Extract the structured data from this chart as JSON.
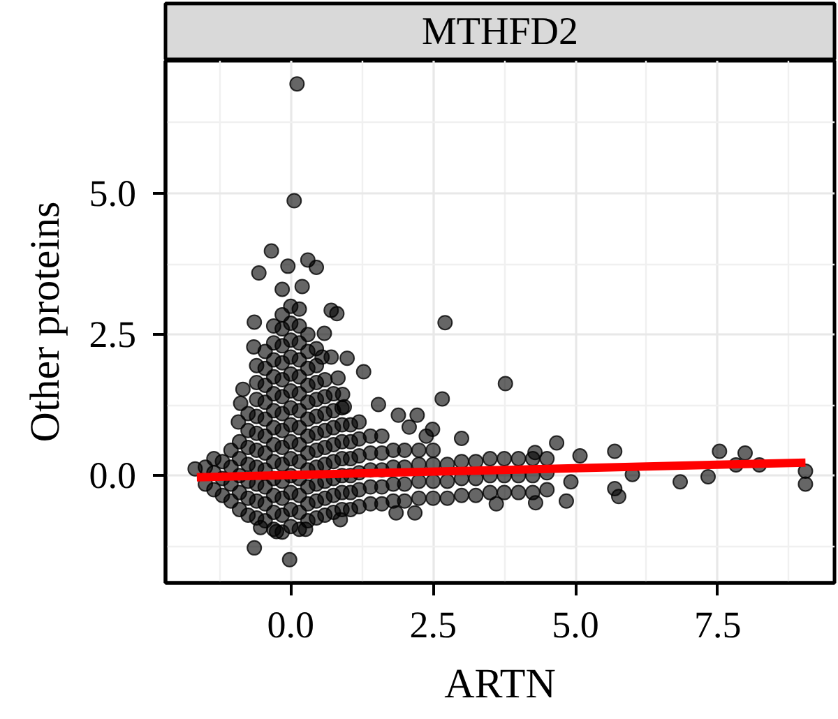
{
  "chart_data": {
    "type": "scatter",
    "title": "MTHFD2",
    "xlabel": "ARTN",
    "ylabel": "Other proteins",
    "xlim": [
      -2.2,
      9.55
    ],
    "ylim": [
      -1.9,
      7.35
    ],
    "xticks": [
      {
        "value": 0,
        "label": "0.0"
      },
      2.5,
      {
        "value": 5,
        "label": "5.0"
      },
      7.5
    ],
    "yticks": [
      {
        "value": 0,
        "label": "0.0"
      },
      2.5,
      {
        "value": 5,
        "label": "5.0"
      }
    ],
    "grid": true,
    "series": [
      {
        "color": "#000000",
        "marker": "circle",
        "x": [
          0.11,
          0.06,
          -0.34,
          -0.56,
          -0.05,
          0.3,
          0.45,
          2.71,
          3.77,
          2.66,
          1.54,
          1.28,
          0.99,
          1.89,
          2.22,
          2.08,
          2.49,
          2.38,
          3.0,
          -0.65,
          -0.64,
          0.71,
          0.81,
          0.59,
          0.55,
          0.71,
          0.83,
          0.91,
          0.94,
          -0.84,
          -0.88,
          -0.92,
          -0.64,
          -0.02,
          -1.68,
          0.87,
          1.85,
          2.18,
          3.61,
          4.3,
          4.67,
          4.84,
          -0.25,
          0.26,
          -0.53,
          5.69,
          6.0,
          5.76,
          6.84,
          7.33,
          7.53,
          7.98,
          7.82,
          8.23,
          9.04,
          9.04,
          5.08,
          5.69,
          4.92,
          4.29,
          -0.15,
          0.2,
          -1.5,
          -1.5,
          -1.2,
          -1.2,
          -1.2,
          -0.9,
          -0.9,
          -0.9,
          -0.9,
          -0.9,
          -0.6,
          -0.6,
          -0.6,
          -0.6,
          -0.6,
          -0.6,
          -0.6,
          -0.6,
          -0.6,
          -0.6,
          -0.3,
          -0.3,
          -0.3,
          -0.3,
          -0.3,
          -0.3,
          -0.3,
          -0.3,
          -0.3,
          -0.3,
          -0.3,
          -0.3,
          -0.3,
          0.0,
          0.0,
          0.0,
          0.0,
          0.0,
          0.0,
          0.0,
          0.0,
          0.0,
          0.0,
          0.0,
          0.0,
          0.0,
          0.0,
          0.3,
          0.3,
          0.3,
          0.3,
          0.3,
          0.3,
          0.3,
          0.3,
          0.3,
          0.3,
          0.3,
          0.3,
          0.6,
          0.6,
          0.6,
          0.6,
          0.6,
          0.6,
          0.6,
          0.6,
          0.6,
          0.9,
          0.9,
          0.9,
          0.9,
          0.9,
          0.9,
          0.9,
          1.2,
          1.2,
          1.2,
          1.2,
          1.2,
          1.2,
          1.6,
          1.6,
          1.6,
          1.6,
          1.6,
          2.0,
          2.0,
          2.0,
          2.0,
          2.5,
          2.5,
          2.5,
          2.5,
          3.0,
          3.0,
          3.0,
          3.5,
          3.5,
          3.5,
          4.0,
          4.0,
          4.0,
          4.5,
          4.5,
          4.5,
          -0.45,
          -0.45,
          -0.45,
          -0.45,
          -0.45,
          -0.45,
          -0.45,
          -0.45,
          -0.45,
          -0.45,
          -0.45,
          -0.15,
          -0.15,
          -0.15,
          -0.15,
          -0.15,
          -0.15,
          -0.15,
          -0.15,
          -0.15,
          -0.15,
          -0.15,
          -0.15,
          -0.15,
          -0.15,
          0.15,
          0.15,
          0.15,
          0.15,
          0.15,
          0.15,
          0.15,
          0.15,
          0.15,
          0.15,
          0.15,
          0.15,
          0.15,
          0.15,
          0.45,
          0.45,
          0.45,
          0.45,
          0.45,
          0.45,
          0.45,
          0.45,
          0.45,
          0.45,
          0.45,
          0.75,
          0.75,
          0.75,
          0.75,
          0.75,
          0.75,
          0.75,
          0.75,
          1.05,
          1.05,
          1.05,
          1.05,
          1.05,
          1.05,
          1.4,
          1.4,
          1.4,
          1.4,
          1.4,
          -0.75,
          -0.75,
          -0.75,
          -0.75,
          -0.75,
          -0.75,
          -0.75,
          -1.05,
          -1.05,
          -1.05,
          -1.05,
          -1.35,
          -1.35,
          -1.35,
          1.8,
          1.8,
          1.8,
          1.8,
          2.25,
          2.25,
          2.25,
          2.25,
          2.75,
          2.75,
          2.75,
          3.25,
          3.25,
          3.25,
          3.75,
          3.75,
          3.75,
          4.25,
          4.25,
          4.25
        ],
        "values": [
          6.94,
          4.87,
          3.98,
          3.59,
          3.71,
          3.82,
          3.69,
          2.71,
          1.63,
          1.36,
          1.26,
          1.84,
          2.08,
          1.07,
          1.07,
          0.86,
          0.82,
          0.7,
          0.66,
          2.28,
          2.72,
          2.93,
          2.87,
          2.52,
          2.1,
          2.1,
          1.73,
          1.44,
          1.22,
          1.53,
          1.28,
          0.95,
          -1.28,
          -1.49,
          0.12,
          -0.78,
          -0.66,
          -0.66,
          -0.5,
          -0.48,
          0.58,
          -0.45,
          -0.99,
          -0.95,
          -0.92,
          0.43,
          0.02,
          -0.37,
          -0.11,
          -0.02,
          0.43,
          0.4,
          0.19,
          0.19,
          0.08,
          -0.15,
          0.35,
          -0.23,
          -0.11,
          0.41,
          3.3,
          3.35,
          -0.15,
          0.15,
          -0.35,
          -0.05,
          0.25,
          -0.6,
          -0.3,
          0.0,
          0.3,
          0.6,
          -0.75,
          -0.45,
          -0.15,
          0.15,
          0.45,
          0.75,
          1.05,
          1.35,
          1.65,
          1.95,
          -0.95,
          -0.65,
          -0.35,
          -0.05,
          0.25,
          0.55,
          0.85,
          1.15,
          1.45,
          1.75,
          2.05,
          2.35,
          2.65,
          -0.9,
          -0.6,
          -0.3,
          0.0,
          0.3,
          0.6,
          0.9,
          1.2,
          1.5,
          1.8,
          2.1,
          2.4,
          2.7,
          3.0,
          -0.8,
          -0.5,
          -0.2,
          0.1,
          0.4,
          0.7,
          1.0,
          1.3,
          1.6,
          1.9,
          2.2,
          2.5,
          -0.7,
          -0.4,
          -0.1,
          0.2,
          0.5,
          0.8,
          1.1,
          1.4,
          1.7,
          -0.6,
          -0.3,
          0.0,
          0.3,
          0.6,
          0.9,
          1.2,
          -0.55,
          -0.25,
          0.05,
          0.35,
          0.65,
          0.95,
          -0.5,
          -0.2,
          0.1,
          0.4,
          0.7,
          -0.45,
          -0.15,
          0.15,
          0.45,
          -0.4,
          -0.1,
          0.2,
          0.45,
          -0.35,
          -0.05,
          0.25,
          -0.3,
          0.0,
          0.3,
          -0.3,
          0.0,
          0.3,
          -0.25,
          0.05,
          0.3,
          -0.8,
          -0.5,
          -0.2,
          0.1,
          0.4,
          0.7,
          1.0,
          1.3,
          1.6,
          1.9,
          2.2,
          -1.0,
          -0.7,
          -0.4,
          -0.1,
          0.2,
          0.5,
          0.8,
          1.1,
          1.4,
          1.7,
          2.0,
          2.3,
          2.6,
          2.85,
          -0.95,
          -0.65,
          -0.35,
          -0.05,
          0.25,
          0.55,
          0.85,
          1.15,
          1.45,
          1.75,
          2.05,
          2.35,
          2.65,
          2.95,
          -0.75,
          -0.45,
          -0.15,
          0.15,
          0.45,
          0.75,
          1.05,
          1.35,
          1.65,
          1.95,
          2.25,
          -0.65,
          -0.35,
          -0.05,
          0.25,
          0.55,
          0.85,
          1.15,
          1.45,
          -0.6,
          -0.3,
          0.0,
          0.3,
          0.6,
          0.9,
          -0.5,
          -0.2,
          0.1,
          0.4,
          0.7,
          -0.7,
          -0.4,
          -0.1,
          0.2,
          0.5,
          0.8,
          1.1,
          -0.45,
          -0.15,
          0.15,
          0.45,
          -0.25,
          0.05,
          0.3,
          -0.45,
          -0.15,
          0.15,
          0.45,
          -0.4,
          -0.1,
          0.2,
          0.45,
          -0.4,
          -0.1,
          0.2,
          -0.35,
          -0.05,
          0.25,
          -0.3,
          0.0,
          0.3,
          -0.3,
          0.0,
          0.3
        ]
      },
      {
        "type": "line",
        "color": "#ff0000",
        "x": [
          -1.65,
          9.04
        ],
        "values": [
          -0.03,
          0.23
        ]
      }
    ]
  }
}
